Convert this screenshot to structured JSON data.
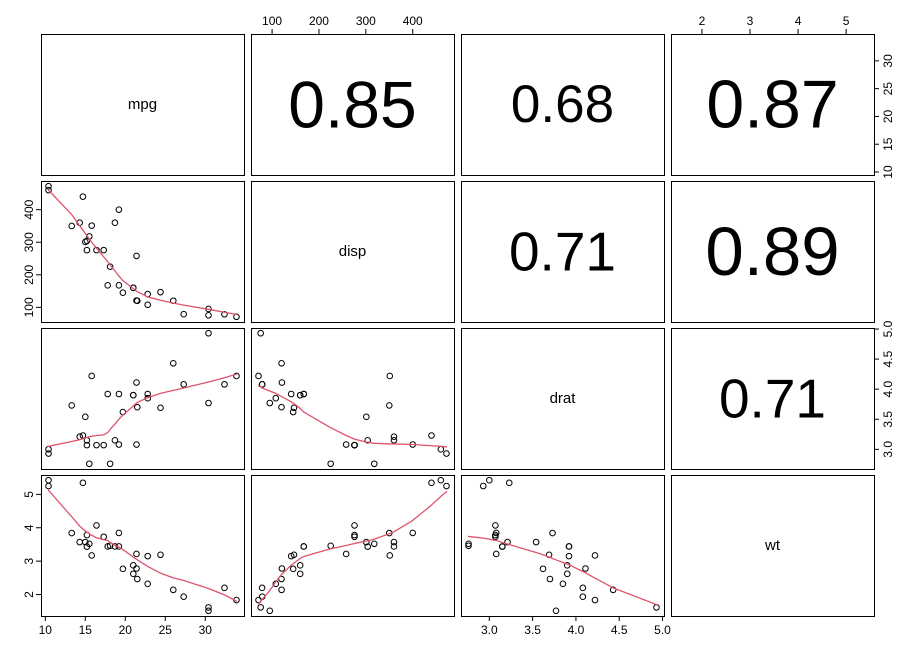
{
  "chart_data": {
    "type": "scatter",
    "subtype": "scatterplot-matrix",
    "title": "",
    "variables": [
      "mpg",
      "disp",
      "drat",
      "wt"
    ],
    "grid": "off",
    "legend": "none",
    "ranges": {
      "mpg": [
        9.46,
        34.84
      ],
      "disp": [
        55.06,
        488.04
      ],
      "drat": [
        2.673,
        5.017
      ],
      "wt": [
        1.357,
        5.58
      ]
    },
    "ticks": {
      "mpg": {
        "values": [
          10,
          15,
          20,
          25,
          30
        ],
        "labels": [
          "10",
          "15",
          "20",
          "25",
          "30"
        ]
      },
      "disp": {
        "values": [
          100,
          200,
          300,
          400
        ],
        "labels": [
          "100",
          "200",
          "300",
          "400"
        ]
      },
      "drat": {
        "values": [
          3.0,
          3.5,
          4.0,
          4.5,
          5.0
        ],
        "labels": [
          "3.0",
          "3.5",
          "4.0",
          "4.5",
          "5.0"
        ]
      },
      "wt": {
        "values": [
          2,
          3,
          4,
          5
        ],
        "labels": [
          "2",
          "3",
          "4",
          "5"
        ]
      }
    },
    "axis_sides": {
      "top_cols": [
        1,
        3
      ],
      "bottom_cols": [
        0,
        2
      ],
      "left_rows": [
        1,
        3
      ],
      "right_rows": [
        0,
        2
      ]
    },
    "observations": {
      "mpg": [
        21,
        21,
        22.8,
        21.4,
        18.7,
        18.1,
        14.3,
        24.4,
        22.8,
        19.2,
        17.8,
        16.4,
        17.3,
        15.2,
        10.4,
        10.4,
        14.7,
        32.4,
        30.4,
        33.9,
        21.5,
        15.5,
        15.2,
        13.3,
        19.2,
        27.3,
        26,
        30.4,
        15.8,
        19.7,
        15,
        21.4
      ],
      "disp": [
        160,
        160,
        108,
        258,
        360,
        225,
        360,
        146.7,
        140.8,
        167.6,
        167.6,
        275.8,
        275.8,
        275.8,
        472,
        460,
        440,
        78.7,
        75.7,
        71.1,
        120.1,
        318,
        304,
        350,
        400,
        79,
        120.3,
        95.1,
        351,
        145,
        301,
        121
      ],
      "drat": [
        3.9,
        3.9,
        3.85,
        3.08,
        3.15,
        2.76,
        3.21,
        3.69,
        3.92,
        3.92,
        3.92,
        3.07,
        3.07,
        3.07,
        2.93,
        3,
        3.23,
        4.08,
        4.93,
        4.22,
        3.7,
        2.76,
        3.15,
        3.73,
        3.08,
        4.08,
        4.43,
        3.77,
        4.22,
        3.62,
        3.54,
        4.11
      ],
      "wt": [
        2.62,
        2.875,
        2.32,
        3.215,
        3.44,
        3.46,
        3.57,
        3.19,
        3.15,
        3.44,
        3.44,
        4.07,
        3.73,
        3.78,
        5.25,
        5.424,
        5.345,
        2.2,
        1.615,
        1.835,
        2.465,
        3.52,
        3.435,
        3.84,
        3.845,
        1.935,
        2.14,
        1.513,
        3.17,
        2.77,
        3.57,
        2.78
      ]
    },
    "correlations": [
      {
        "row": 0,
        "col": 1,
        "value": 0.85,
        "label": "0.85"
      },
      {
        "row": 0,
        "col": 2,
        "value": 0.68,
        "label": "0.68"
      },
      {
        "row": 0,
        "col": 3,
        "value": 0.87,
        "label": "0.87"
      },
      {
        "row": 1,
        "col": 2,
        "value": 0.71,
        "label": "0.71"
      },
      {
        "row": 1,
        "col": 3,
        "value": 0.89,
        "label": "0.89"
      },
      {
        "row": 2,
        "col": 3,
        "value": 0.71,
        "label": "0.71"
      }
    ],
    "smooths": {
      "disp~mpg": [
        [
          10.4,
          460
        ],
        [
          13.3,
          385
        ],
        [
          14.3,
          350
        ],
        [
          14.7,
          337
        ],
        [
          15,
          327
        ],
        [
          15.2,
          320
        ],
        [
          15.5,
          310
        ],
        [
          15.8,
          300
        ],
        [
          16.4,
          282
        ],
        [
          17.3,
          255
        ],
        [
          17.8,
          240
        ],
        [
          18.1,
          230
        ],
        [
          18.7,
          212
        ],
        [
          19.2,
          196
        ],
        [
          19.7,
          182
        ],
        [
          21,
          158
        ],
        [
          21.4,
          150
        ],
        [
          21.5,
          148
        ],
        [
          22.8,
          132
        ],
        [
          24.4,
          122
        ],
        [
          26,
          113
        ],
        [
          27.3,
          107
        ],
        [
          30.4,
          94
        ],
        [
          32.4,
          85
        ],
        [
          33.9,
          78
        ]
      ],
      "drat~mpg": [
        [
          10.4,
          3.05
        ],
        [
          13.3,
          3.13
        ],
        [
          14.3,
          3.16
        ],
        [
          15,
          3.19
        ],
        [
          15.5,
          3.21
        ],
        [
          16.4,
          3.23
        ],
        [
          17.3,
          3.24
        ],
        [
          17.8,
          3.28
        ],
        [
          18.1,
          3.33
        ],
        [
          18.7,
          3.42
        ],
        [
          19.2,
          3.5
        ],
        [
          19.7,
          3.57
        ],
        [
          21,
          3.72
        ],
        [
          21.5,
          3.78
        ],
        [
          22.8,
          3.86
        ],
        [
          24.4,
          3.93
        ],
        [
          26,
          3.98
        ],
        [
          27.3,
          4.02
        ],
        [
          30.4,
          4.12
        ],
        [
          32.4,
          4.19
        ],
        [
          33.9,
          4.25
        ]
      ],
      "wt~mpg": [
        [
          10.4,
          5.12
        ],
        [
          13.3,
          4.33
        ],
        [
          14.3,
          4.05
        ],
        [
          15,
          3.9
        ],
        [
          15.5,
          3.82
        ],
        [
          16.4,
          3.7
        ],
        [
          17.3,
          3.64
        ],
        [
          17.8,
          3.62
        ],
        [
          18.1,
          3.56
        ],
        [
          18.7,
          3.48
        ],
        [
          19.2,
          3.42
        ],
        [
          19.7,
          3.35
        ],
        [
          21,
          3.12
        ],
        [
          21.5,
          3.04
        ],
        [
          22.8,
          2.84
        ],
        [
          24.4,
          2.64
        ],
        [
          26,
          2.5
        ],
        [
          27.3,
          2.42
        ],
        [
          30.4,
          2.18
        ],
        [
          32.4,
          1.99
        ],
        [
          33.9,
          1.8
        ]
      ],
      "drat~disp": [
        [
          71.1,
          4.05
        ],
        [
          75.7,
          4.04
        ],
        [
          78.7,
          4.02
        ],
        [
          95.1,
          3.97
        ],
        [
          108,
          3.93
        ],
        [
          120.1,
          3.88
        ],
        [
          140.8,
          3.79
        ],
        [
          146.7,
          3.76
        ],
        [
          160,
          3.68
        ],
        [
          167.6,
          3.62
        ],
        [
          225,
          3.36
        ],
        [
          258,
          3.23
        ],
        [
          275.8,
          3.17
        ],
        [
          301,
          3.12
        ],
        [
          304,
          3.12
        ],
        [
          318,
          3.1
        ],
        [
          350,
          3.09
        ],
        [
          360,
          3.09
        ],
        [
          400,
          3.08
        ],
        [
          440,
          3.06
        ],
        [
          460,
          3.05
        ],
        [
          472,
          3.04
        ]
      ],
      "wt~disp": [
        [
          71.1,
          1.72
        ],
        [
          75.7,
          1.8
        ],
        [
          78.7,
          1.85
        ],
        [
          95.1,
          2.12
        ],
        [
          108,
          2.38
        ],
        [
          120.1,
          2.6
        ],
        [
          140.8,
          2.88
        ],
        [
          146.7,
          2.94
        ],
        [
          160,
          3.08
        ],
        [
          167.6,
          3.14
        ],
        [
          225,
          3.37
        ],
        [
          258,
          3.47
        ],
        [
          275.8,
          3.53
        ],
        [
          301,
          3.6
        ],
        [
          318,
          3.66
        ],
        [
          350,
          3.82
        ],
        [
          360,
          3.88
        ],
        [
          400,
          4.22
        ],
        [
          440,
          4.68
        ],
        [
          460,
          4.94
        ],
        [
          472,
          5.08
        ]
      ],
      "wt~drat": [
        [
          2.76,
          3.74
        ],
        [
          2.93,
          3.69
        ],
        [
          3,
          3.66
        ],
        [
          3.07,
          3.62
        ],
        [
          3.08,
          3.62
        ],
        [
          3.15,
          3.56
        ],
        [
          3.21,
          3.51
        ],
        [
          3.23,
          3.5
        ],
        [
          3.54,
          3.26
        ],
        [
          3.62,
          3.19
        ],
        [
          3.69,
          3.12
        ],
        [
          3.7,
          3.11
        ],
        [
          3.73,
          3.08
        ],
        [
          3.77,
          3.04
        ],
        [
          3.85,
          2.96
        ],
        [
          3.9,
          2.91
        ],
        [
          3.92,
          2.89
        ],
        [
          4.08,
          2.69
        ],
        [
          4.11,
          2.65
        ],
        [
          4.22,
          2.49
        ],
        [
          4.43,
          2.2
        ],
        [
          4.93,
          1.7
        ]
      ]
    },
    "colors": {
      "background": "#FFFFFF",
      "panel_border": "#000000",
      "point_stroke": "#000000",
      "smooth_line": "#DF536B",
      "text": "#000000"
    },
    "style": {
      "diag_label_font_px": 15,
      "axis_font_px": 12,
      "corr_font_scale": 78,
      "point_radius_px": 2.8
    }
  }
}
